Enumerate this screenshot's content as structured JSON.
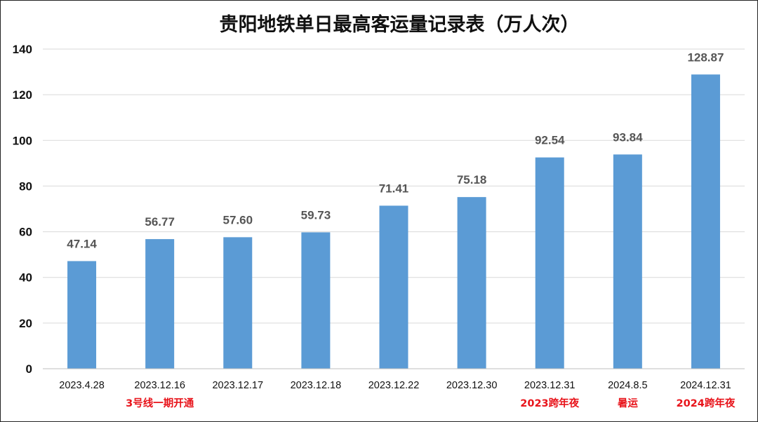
{
  "chart_data": {
    "type": "bar",
    "title": "贵阳地铁单日最高客运量记录表（万人次）",
    "categories": [
      "2023.4.28",
      "2023.12.16",
      "2023.12.17",
      "2023.12.18",
      "2023.12.22",
      "2023.12.30",
      "2023.12.31",
      "2024.8.5",
      "2024.12.31"
    ],
    "annotations": [
      "",
      "3号线一期开通",
      "",
      "",
      "",
      "",
      "2023跨年夜",
      "暑运",
      "2024跨年夜"
    ],
    "values": [
      47.14,
      56.77,
      57.6,
      59.73,
      71.41,
      75.18,
      92.54,
      93.84,
      128.87
    ],
    "data_labels": [
      "47.14",
      "56.77",
      "57.60",
      "59.73",
      "71.41",
      "75.18",
      "92.54",
      "93.84",
      "128.87"
    ],
    "ylim": [
      0,
      140
    ],
    "yticks": [
      0,
      20,
      40,
      60,
      80,
      100,
      120,
      140
    ],
    "xlabel": "",
    "ylabel": "",
    "grid": true,
    "legend": "none",
    "colors": {
      "bar": "#5b9bd5",
      "annotation": "#e8141b",
      "data_label": "#555555"
    }
  }
}
